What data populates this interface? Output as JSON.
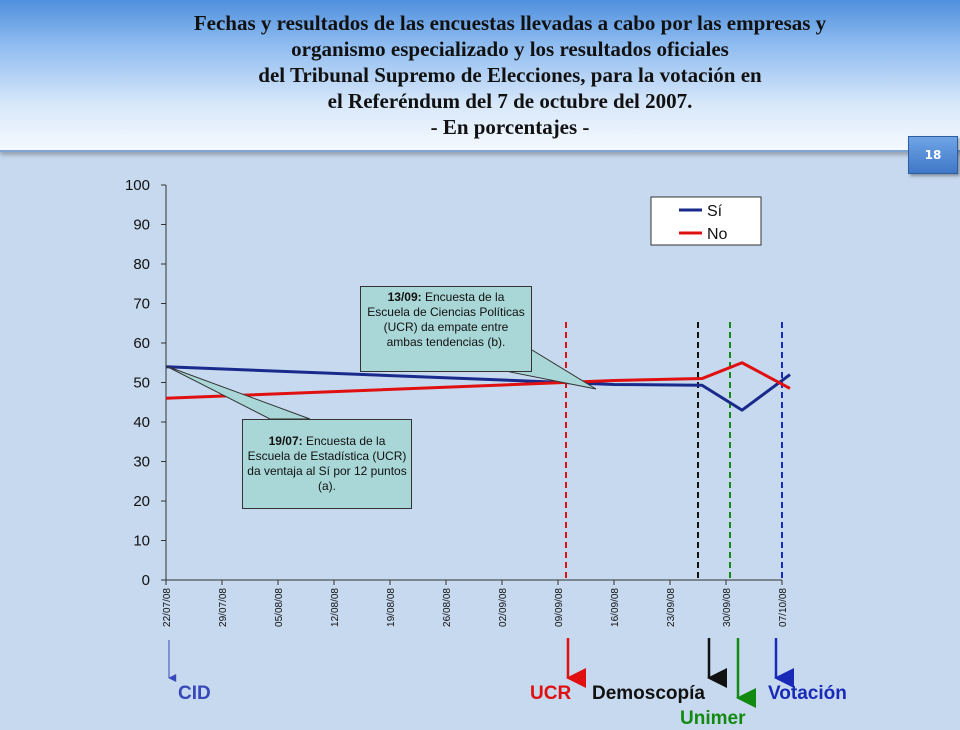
{
  "title_lines": [
    "Fechas y resultados de las encuestas llevadas a cabo por las empresas y",
    "organismo especializado y los resultados oficiales",
    "del Tribunal Supremo de Elecciones, para la votación en",
    "el Referéndum del 7 de octubre del 2007.",
    "- En porcentajes -"
  ],
  "page_number": "18",
  "colors": {
    "si": "#1a2a8c",
    "no": "#e01010",
    "cid": "#3848b8",
    "ucr": "#e01010",
    "demoscopia": "#111111",
    "unimer": "#128a12",
    "votacion": "#1a2ab8"
  },
  "chart_data": {
    "type": "line",
    "x_tick_labels": [
      "22/07/08",
      "29/07/08",
      "05/08/08",
      "12/08/08",
      "19/08/08",
      "26/08/08",
      "02/09/08",
      "09/09/08",
      "16/09/08",
      "23/09/08",
      "30/09/08",
      "07/10/08"
    ],
    "x_unit": "days from 22/07/08",
    "ylim": [
      0,
      100
    ],
    "y_ticks": [
      0,
      10,
      20,
      30,
      40,
      50,
      60,
      70,
      80,
      90,
      100
    ],
    "legend_position": "top-right",
    "series": [
      {
        "name": "Sí",
        "color": "#1a2a8c",
        "points": [
          [
            0,
            54
          ],
          [
            56,
            49.5
          ],
          [
            67,
            49.3
          ],
          [
            72,
            43
          ],
          [
            78,
            52
          ]
        ]
      },
      {
        "name": "No",
        "color": "#e01010",
        "points": [
          [
            0,
            46
          ],
          [
            56,
            50.5
          ],
          [
            67,
            51
          ],
          [
            72,
            55
          ],
          [
            78,
            48.5
          ]
        ]
      }
    ],
    "annotations": [
      {
        "bold": "13/09:",
        "text": " Encuesta de la Escuela de Ciencias Políticas (UCR) da empate entre ambas tendencias (b)."
      },
      {
        "bold": "19/07:",
        "text": " Encuesta de la Escuela de Estadística (UCR) da ventaja al Sí por 12 puntos (a)."
      }
    ],
    "sources": [
      {
        "name": "CID",
        "color": "#3848b8"
      },
      {
        "name": "UCR",
        "color": "#e01010"
      },
      {
        "name": "Demoscopía",
        "color": "#111111"
      },
      {
        "name": "Unimer",
        "color": "#128a12"
      },
      {
        "name": "Votación",
        "color": "#1a2ab8"
      }
    ]
  }
}
